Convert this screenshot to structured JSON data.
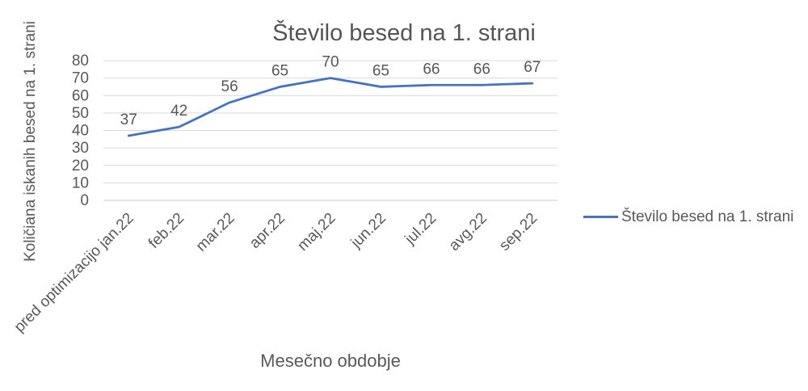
{
  "chart_data": {
    "type": "line",
    "title": "Število besed na 1. strani",
    "xlabel": "Mesečno obdobje",
    "ylabel": "Količiana iskanih besed na 1. strani",
    "categories": [
      "pred optimizacijo jan.22",
      "feb.22",
      "mar.22",
      "apr.22",
      "maj.22",
      "jun.22",
      "jul.22",
      "avg.22",
      "sep.22"
    ],
    "series": [
      {
        "name": "Število besed na 1. strani",
        "values": [
          37,
          42,
          56,
          65,
          70,
          65,
          66,
          66,
          67
        ]
      }
    ],
    "ylim": [
      0,
      80
    ],
    "ytick_step": 10,
    "yticks": [
      0,
      10,
      20,
      30,
      40,
      50,
      60,
      70,
      80
    ],
    "grid": "horizontal",
    "legend_position": "right",
    "data_labels": true,
    "colors": {
      "series_line": "#4472C4",
      "gridline": "#D9D9D9",
      "axis_line": "#C9C9C9",
      "text": "#595959"
    }
  }
}
